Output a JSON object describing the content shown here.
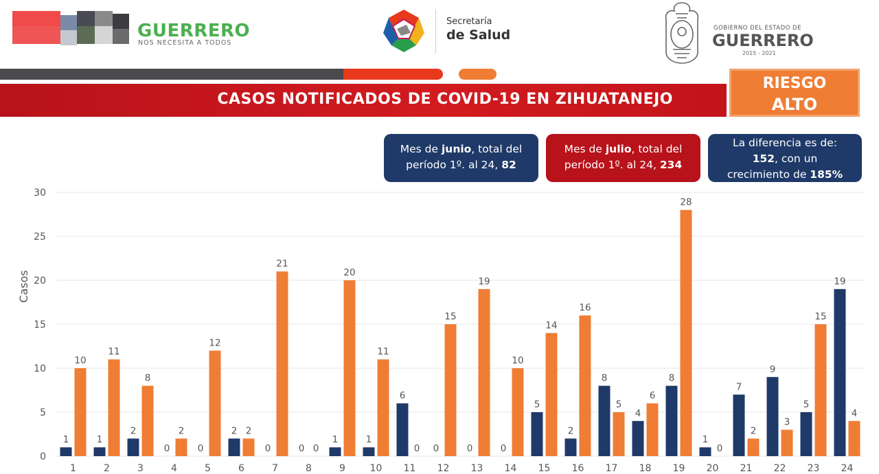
{
  "header": {
    "left_logo": {
      "word": "GUERRERO",
      "tagline": "NOS NECESITA A TODOS"
    },
    "center_logo": {
      "line1": "Secretaría",
      "line2": "de Salud"
    },
    "right_logo": {
      "line1": "GOBIERNO DEL ESTADO DE",
      "line2": "GUERRERO",
      "years": "2015 - 2021"
    }
  },
  "banner": {
    "title": "CASOS NOTIFICADOS DE COVID-19 EN ZIHUATANEJO"
  },
  "risk": {
    "line1": "RIESGO",
    "line2": "ALTO"
  },
  "info_boxes": {
    "junio": {
      "pre": "Mes de ",
      "month": "junio",
      "mid": ", total del",
      "line2_pre": "período 1º. al 24, ",
      "total": "82"
    },
    "julio": {
      "pre": "Mes de ",
      "month": "julio",
      "mid": ", total del",
      "line2_pre": "período 1º. al 24, ",
      "total": "234"
    },
    "diferencia": {
      "line1": "La diferencia es de:",
      "value": "152",
      "line2_post": ", con un",
      "line3_pre": "crecimiento de ",
      "percent": "185%"
    }
  },
  "colors": {
    "junio": "#1f3a68",
    "julio": "#ef7d34",
    "grid": "#e6e6e6",
    "axis_text": "#555555"
  },
  "chart_data": {
    "type": "bar",
    "categories": [
      "1",
      "2",
      "3",
      "4",
      "5",
      "6",
      "7",
      "8",
      "9",
      "10",
      "11",
      "12",
      "13",
      "14",
      "15",
      "16",
      "17",
      "18",
      "19",
      "20",
      "21",
      "22",
      "23",
      "24"
    ],
    "series": [
      {
        "values": [
          1,
          1,
          2,
          0,
          0,
          2,
          0,
          0,
          1,
          1,
          6,
          0,
          0,
          0,
          5,
          2,
          8,
          4,
          8,
          1,
          7,
          9,
          5,
          19
        ]
      },
      {
        "values": [
          10,
          11,
          8,
          2,
          12,
          2,
          21,
          0,
          20,
          11,
          0,
          15,
          19,
          10,
          14,
          16,
          5,
          6,
          28,
          0,
          2,
          3,
          15,
          4
        ]
      }
    ],
    "ylabel": "Casos",
    "ylim": [
      0,
      30
    ],
    "yticks": [
      0,
      5,
      10,
      15,
      20,
      25,
      30
    ],
    "grid": true
  }
}
